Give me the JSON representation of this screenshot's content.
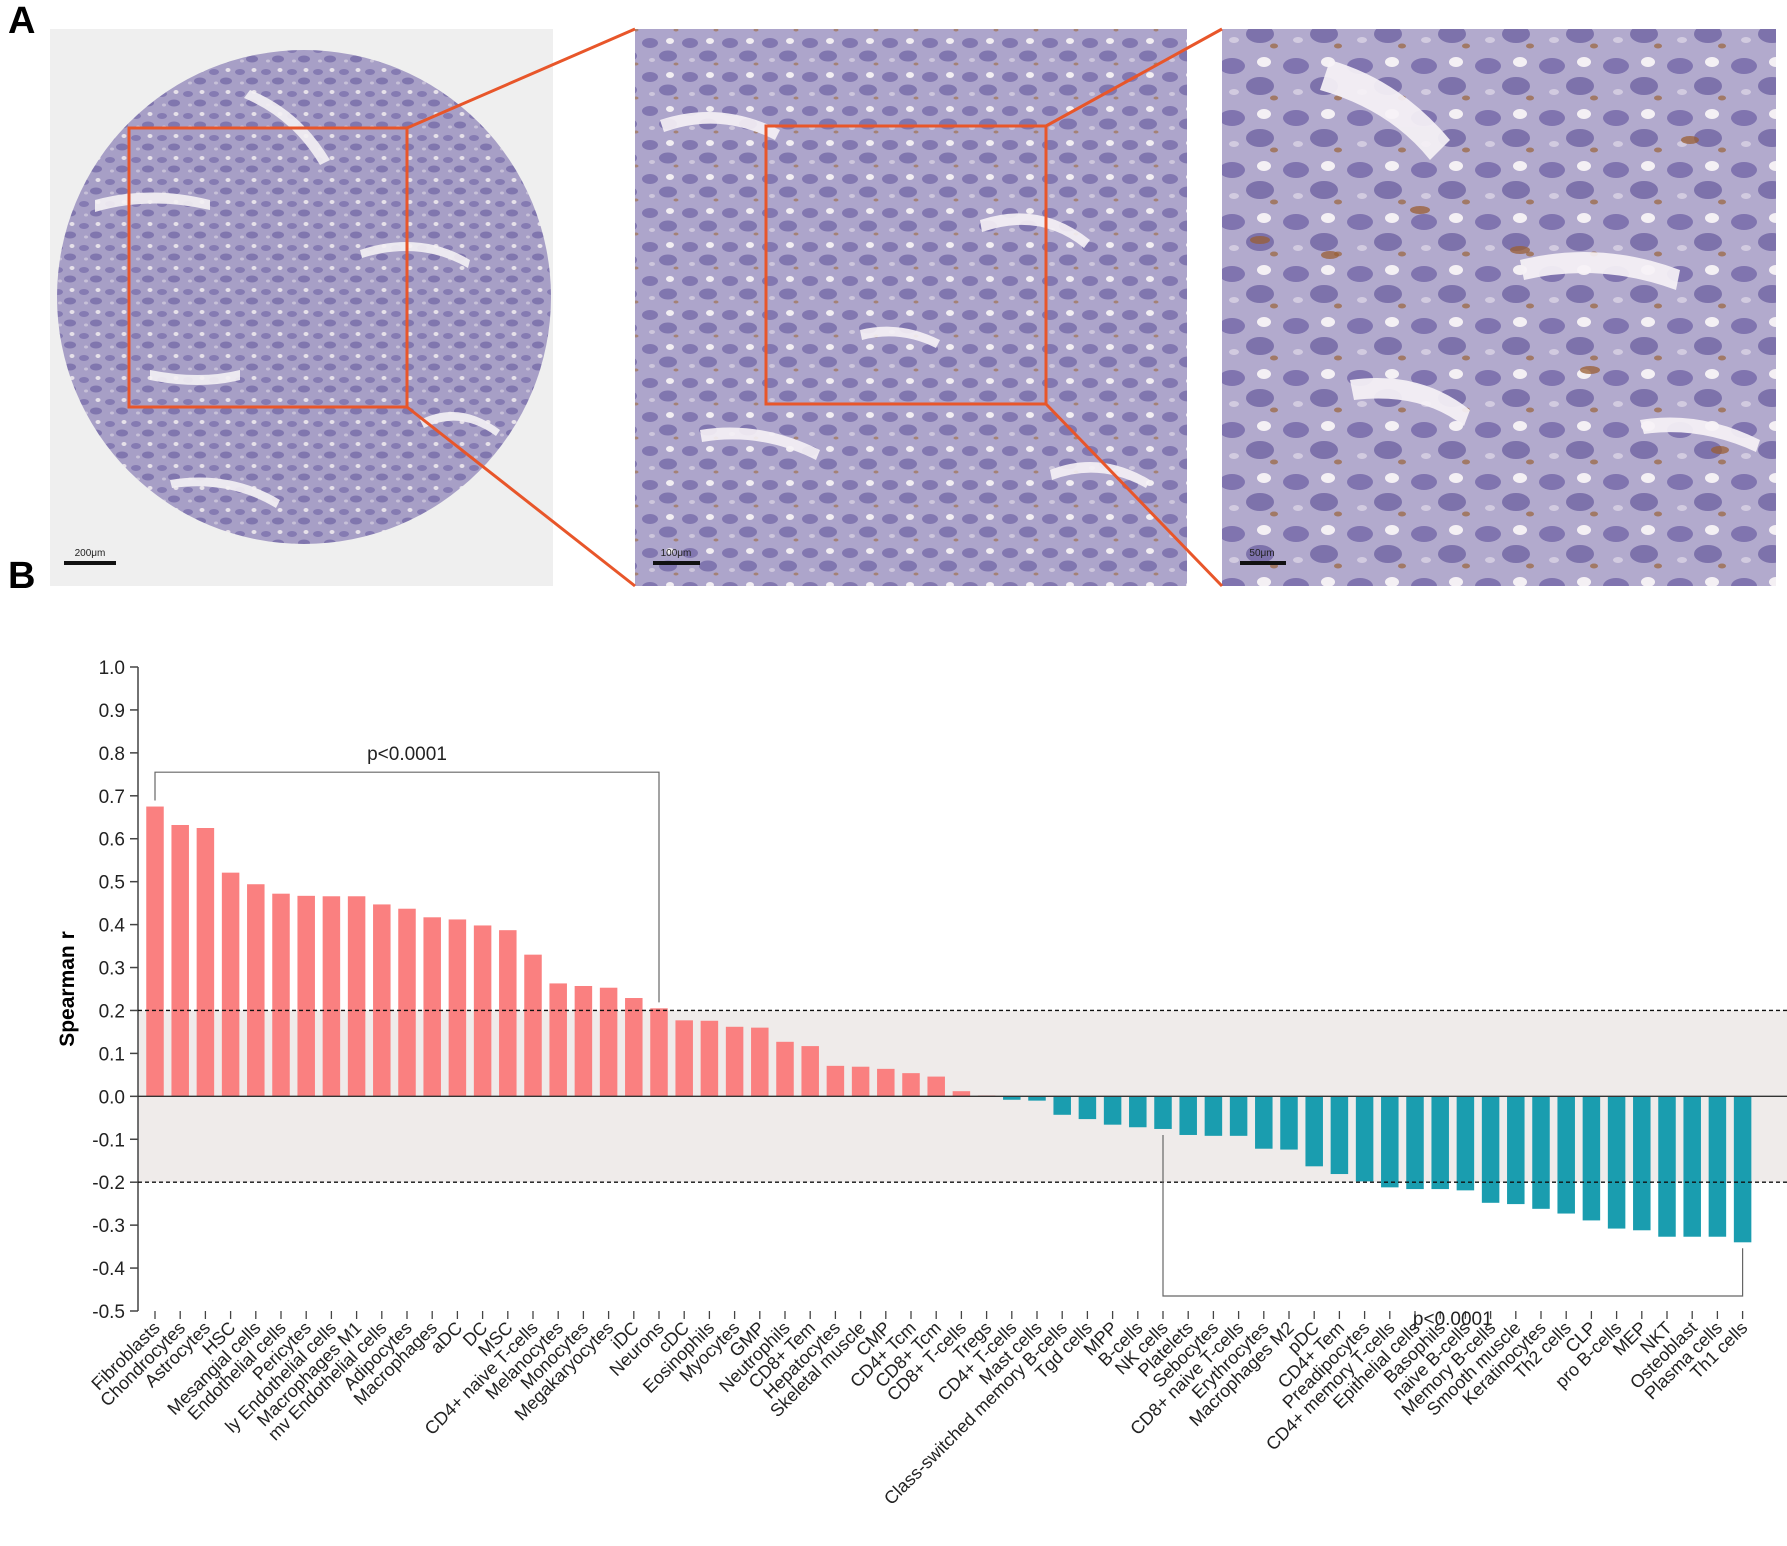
{
  "panel_a": {
    "label": "A",
    "scale_bars": [
      "200μm",
      "100μm",
      "50μm"
    ],
    "colors": {
      "zoom_box": "#e8562a",
      "tissue": "#8f85b8",
      "background": "#eeeeee"
    }
  },
  "panel_b": {
    "label": "B"
  },
  "chart_data": {
    "type": "bar",
    "title": "",
    "xlabel": "",
    "ylabel": "Spearman r",
    "ylim": [
      -0.5,
      1.0
    ],
    "yticks": [
      1.0,
      0.9,
      0.8,
      0.7,
      0.6,
      0.5,
      0.4,
      0.3,
      0.2,
      0.1,
      0.0,
      -0.1,
      -0.2,
      -0.3,
      -0.4,
      -0.5
    ],
    "ytick_labels": [
      "1.0",
      "0.9",
      "0.8",
      "0.7",
      "0.6",
      "0.5",
      "0.4",
      "0.3",
      "0.2",
      "0.1",
      "0.0",
      "-0.1",
      "-0.2",
      "-0.3",
      "-0.4",
      "-0.5"
    ],
    "threshold_lines": [
      0.2,
      -0.2
    ],
    "positive_color": "#fa8080",
    "negative_color": "#1a9daf",
    "shade_color": "#efebea",
    "categories": [
      "Fibroblasts",
      "Chondrocytes",
      "Astrocytes",
      "HSC",
      "Mesangial cells",
      "Endothelial cells",
      "Pericytes",
      "ly Endothelial cells",
      "Macrophages M1",
      "mv Endothelial cells",
      "Adipocytes",
      "Macrophages",
      "aDC",
      "DC",
      "MSC",
      "CD4+ naive T-cells",
      "Melanocytes",
      "Monocytes",
      "Megakaryocytes",
      "iDC",
      "Neurons",
      "cDC",
      "Eosinophils",
      "Myocytes",
      "GMP",
      "Neutrophils",
      "CD8+ Tem",
      "Hepatocytes",
      "Skeletal muscle",
      "CMP",
      "CD4+ Tcm",
      "CD8+ Tcm",
      "CD8+ T-cells",
      "Tregs",
      "CD4+ T-cells",
      "Mast cells",
      "Class-switched memory B-cells",
      "Tgd cells",
      "MPP",
      "B-cells",
      "NK cells",
      "Platelets",
      "Sebocytes",
      "CD8+ naive T-cells",
      "Erythrocytes",
      "Macrophages M2",
      "pDC",
      "CD4+ Tem",
      "Preadipocytes",
      "CD4+ memory T-cells",
      "Epithelial cells",
      "Basophils",
      "naive B-cells",
      "Memory B-cells",
      "Smooth muscle",
      "Keratinocytes",
      "Th2 cells",
      "CLP",
      "pro B-cells",
      "MEP",
      "NKT",
      "Osteoblast",
      "Plasma cells",
      "Th1 cells"
    ],
    "values": [
      0.675,
      0.632,
      0.625,
      0.521,
      0.494,
      0.472,
      0.467,
      0.466,
      0.466,
      0.447,
      0.437,
      0.417,
      0.412,
      0.398,
      0.387,
      0.33,
      0.263,
      0.257,
      0.253,
      0.229,
      0.205,
      0.177,
      0.176,
      0.162,
      0.16,
      0.127,
      0.117,
      0.071,
      0.069,
      0.064,
      0.054,
      0.046,
      0.012,
      0.002,
      -0.008,
      -0.01,
      -0.043,
      -0.053,
      -0.066,
      -0.072,
      -0.076,
      -0.09,
      -0.092,
      -0.092,
      -0.122,
      -0.124,
      -0.163,
      -0.181,
      -0.198,
      -0.212,
      -0.216,
      -0.216,
      -0.219,
      -0.248,
      -0.251,
      -0.262,
      -0.273,
      -0.289,
      -0.308,
      -0.312,
      -0.327,
      -0.327,
      -0.327,
      -0.34
    ],
    "annotations": [
      {
        "text": "p<0.0001",
        "from": 0,
        "to": 20,
        "side": "top"
      },
      {
        "text": "p<0.0001",
        "from": 40,
        "to": 63,
        "side": "bottom"
      }
    ]
  }
}
